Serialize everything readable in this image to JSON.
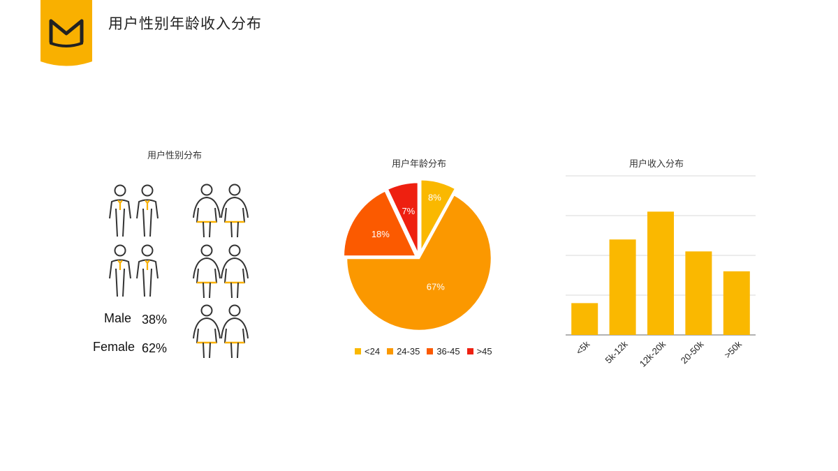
{
  "header": {
    "title": "用户性别年龄收入分布"
  },
  "gender": {
    "title": "用户性别分布",
    "male_label": "Male",
    "male_value": "38%",
    "female_label": "Female",
    "female_value": "62%"
  },
  "age": {
    "title": "用户年龄分布"
  },
  "income": {
    "title": "用户收入分布"
  },
  "colors": {
    "logo": "#F9B000",
    "accent": "#F9B000",
    "figure_stroke": "#333333",
    "lt24": "#FAB800",
    "a24_35": "#FB9800",
    "a36_45": "#FB5A00",
    "gt45": "#EE2010",
    "bar": "#FAB800",
    "grid": "#D9D9D9"
  },
  "chart_data": [
    {
      "type": "pictogram",
      "title": "用户性别分布",
      "categories": [
        "Male",
        "Female"
      ],
      "values": [
        38,
        62
      ],
      "unit": "%"
    },
    {
      "type": "pie",
      "title": "用户年龄分布",
      "categories": [
        "<24",
        "24-35",
        "36-45",
        ">45"
      ],
      "values": [
        8,
        67,
        18,
        7
      ],
      "labels": [
        "8%",
        "67%",
        "18%",
        "7%"
      ],
      "legend": "bottom",
      "exploded": true
    },
    {
      "type": "bar",
      "title": "用户收入分布",
      "categories": [
        "<5k",
        "5k-12k",
        "12k-20k",
        "20-50k",
        ">50k"
      ],
      "values": [
        0.8,
        2.4,
        3.1,
        2.1,
        1.6
      ],
      "ylim": [
        0,
        4
      ],
      "grid": true,
      "y_tick_labels_shown": false,
      "x_tick_rotation": -45
    }
  ]
}
